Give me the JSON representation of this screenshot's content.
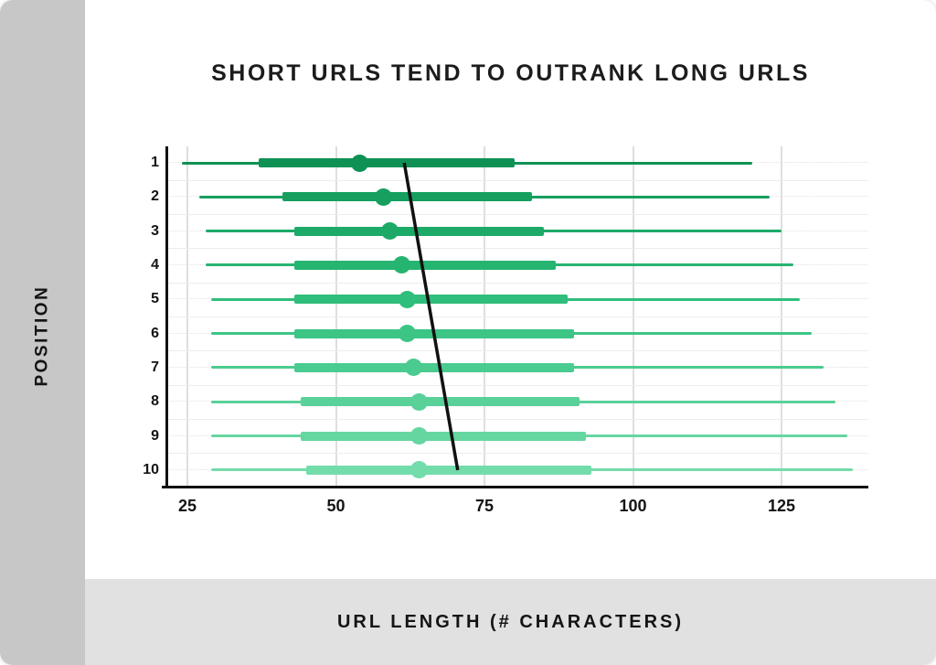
{
  "card": {
    "background": "#ffffff",
    "sidebar_color": "#c7c7c7",
    "footer_color": "#e1e1e1",
    "axis_color": "#111111"
  },
  "chart_data": {
    "type": "box-whisker-horizontal",
    "title": "SHORT URLS TEND TO OUTRANK LONG URLS",
    "xlabel": "URL LENGTH (# CHARACTERS)",
    "ylabel": "POSITION",
    "x_ticks": [
      25,
      50,
      75,
      100,
      125
    ],
    "xlim": [
      21.5,
      139.5
    ],
    "grid": true,
    "y_categories": [
      "1",
      "2",
      "3",
      "4",
      "5",
      "6",
      "7",
      "8",
      "9",
      "10"
    ],
    "rows": [
      {
        "position": 1,
        "min": 24,
        "q1": 37,
        "median": 54,
        "q3": 80,
        "max": 120,
        "color": "#0f9155"
      },
      {
        "position": 2,
        "min": 27,
        "q1": 41,
        "median": 58,
        "q3": 83,
        "max": 123,
        "color": "#169f5f"
      },
      {
        "position": 3,
        "min": 28,
        "q1": 43,
        "median": 59,
        "q3": 85,
        "max": 125,
        "color": "#1daa68"
      },
      {
        "position": 4,
        "min": 28,
        "q1": 43,
        "median": 61,
        "q3": 87,
        "max": 127,
        "color": "#26b471"
      },
      {
        "position": 5,
        "min": 29,
        "q1": 43,
        "median": 62,
        "q3": 89,
        "max": 128,
        "color": "#2fbe7b"
      },
      {
        "position": 6,
        "min": 29,
        "q1": 43,
        "median": 62,
        "q3": 90,
        "max": 130,
        "color": "#3cc585"
      },
      {
        "position": 7,
        "min": 29,
        "q1": 43,
        "median": 63,
        "q3": 90,
        "max": 132,
        "color": "#4acb8f"
      },
      {
        "position": 8,
        "min": 29,
        "q1": 44,
        "median": 64,
        "q3": 91,
        "max": 134,
        "color": "#59d199"
      },
      {
        "position": 9,
        "min": 29,
        "q1": 44,
        "median": 64,
        "q3": 92,
        "max": 136,
        "color": "#66d6a1"
      },
      {
        "position": 10,
        "min": 29,
        "q1": 45,
        "median": 64,
        "q3": 93,
        "max": 137,
        "color": "#73dcab"
      }
    ],
    "trend_line": {
      "color": "#111111",
      "from": {
        "position": 1,
        "value": 61.5
      },
      "to": {
        "position": 10,
        "value": 70.5
      }
    },
    "legend": null
  }
}
